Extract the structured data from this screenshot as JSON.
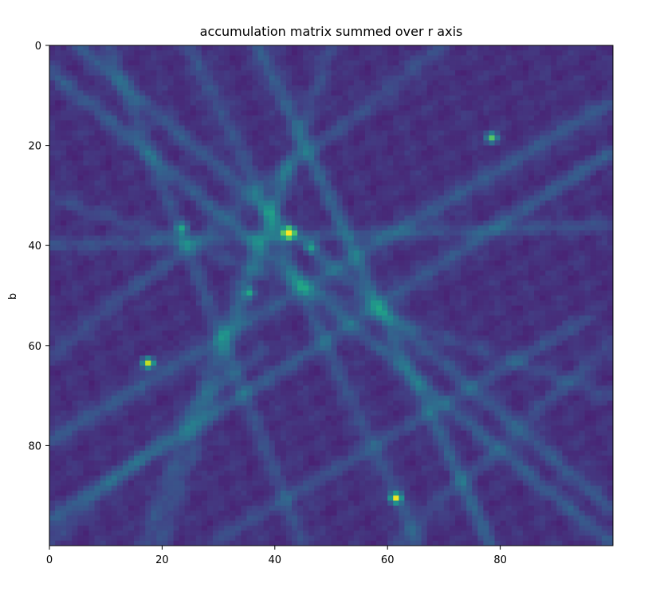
{
  "chart_data": {
    "type": "heatmap",
    "title": "accumulation matrix summed over r axis",
    "xlabel": "",
    "ylabel": "b",
    "x_range": [
      0,
      99
    ],
    "y_range": [
      0,
      99
    ],
    "y_inverted": true,
    "x_ticks": [
      "0",
      "20",
      "40",
      "60",
      "80"
    ],
    "y_ticks": [
      "0",
      "20",
      "40",
      "60",
      "80"
    ],
    "colormap": "viridis",
    "background_level": 0.12,
    "lines": [
      {
        "from": [
          0,
          5
        ],
        "to": [
          99,
          99
        ],
        "intensity": 0.14
      },
      {
        "from": [
          5,
          0
        ],
        "to": [
          99,
          92
        ],
        "intensity": 0.13
      },
      {
        "from": [
          37,
          0
        ],
        "to": [
          78,
          99
        ],
        "intensity": 0.16
      },
      {
        "from": [
          25,
          0
        ],
        "to": [
          65,
          99
        ],
        "intensity": 0.12
      },
      {
        "from": [
          10,
          0
        ],
        "to": [
          45,
          99
        ],
        "intensity": 0.1
      },
      {
        "from": [
          0,
          62
        ],
        "to": [
          70,
          0
        ],
        "intensity": 0.1
      },
      {
        "from": [
          0,
          79
        ],
        "to": [
          99,
          12
        ],
        "intensity": 0.15
      },
      {
        "from": [
          0,
          95
        ],
        "to": [
          99,
          22
        ],
        "intensity": 0.14
      },
      {
        "from": [
          0,
          40
        ],
        "to": [
          99,
          36
        ],
        "intensity": 0.1
      },
      {
        "from": [
          17,
          99
        ],
        "to": [
          42,
          25
        ],
        "intensity": 0.11
      },
      {
        "from": [
          30,
          99
        ],
        "to": [
          95,
          55
        ],
        "intensity": 0.1
      },
      {
        "from": [
          0,
          30
        ],
        "to": [
          99,
          70
        ],
        "intensity": 0.08
      },
      {
        "from": [
          50,
          0
        ],
        "to": [
          20,
          99
        ],
        "intensity": 0.09
      },
      {
        "from": [
          62,
          99
        ],
        "to": [
          99,
          60
        ],
        "intensity": 0.09
      },
      {
        "from": [
          0,
          99
        ],
        "to": [
          38,
          60
        ],
        "intensity": 0.08
      }
    ],
    "peaks": [
      {
        "x": 42,
        "y": 37,
        "value": 1.0
      },
      {
        "x": 17,
        "y": 63,
        "value": 0.78
      },
      {
        "x": 61,
        "y": 90,
        "value": 0.72
      },
      {
        "x": 78,
        "y": 18,
        "value": 0.6
      },
      {
        "x": 35,
        "y": 49,
        "value": 0.35
      },
      {
        "x": 23,
        "y": 36,
        "value": 0.32
      },
      {
        "x": 46,
        "y": 40,
        "value": 0.3
      }
    ]
  }
}
